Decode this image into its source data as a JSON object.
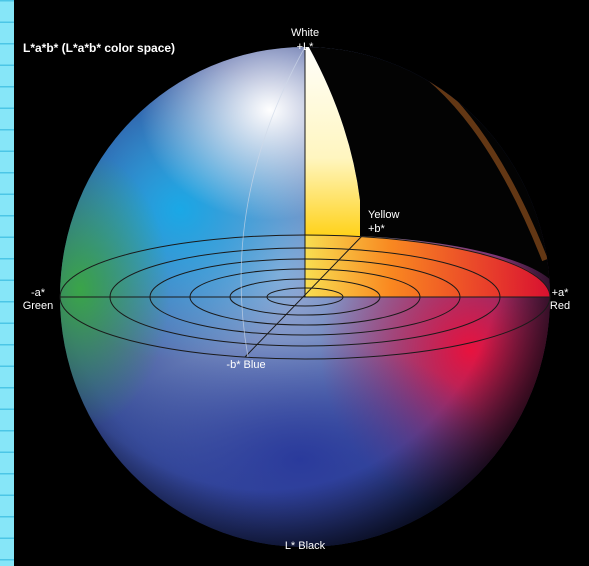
{
  "title": "L*a*b* (L*a*b* color space)",
  "labels": {
    "white": "White",
    "plus_l": "+L*",
    "yellow": "Yellow",
    "plus_b": "+b*",
    "minus_a": "-a*",
    "green": "Green",
    "plus_a": "+a*",
    "red": "Red",
    "minus_b_blue": "-b* Blue",
    "l_black": "L* Black"
  }
}
